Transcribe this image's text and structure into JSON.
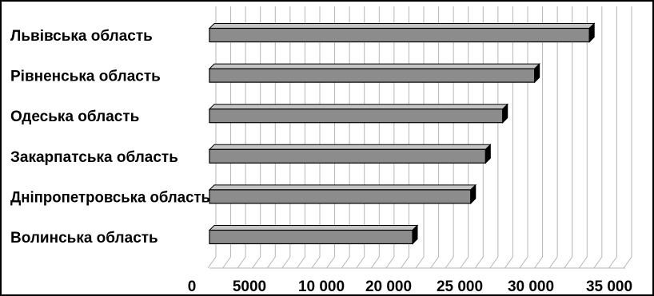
{
  "chart_data": {
    "type": "bar",
    "orientation": "horizontal",
    "style": "3d",
    "categories": [
      "Львівська область",
      "Рівненська область",
      "Одеська область",
      "Закарпатська область",
      "Дніпропетровська область",
      "Волинська область"
    ],
    "values": [
      33300,
      28500,
      25700,
      24200,
      22900,
      17800
    ],
    "tick_labels": [
      "0",
      "5000",
      "10 000",
      "20 000",
      "25 000",
      "30 000",
      "35 000"
    ],
    "xlim": [
      0,
      37000
    ],
    "grid": true,
    "legend": "none",
    "colors": {
      "bar_front": "#8c8c8c",
      "bar_top": "#c4c4c4",
      "bar_side": "#000000",
      "grid": "#b5b5b5"
    }
  }
}
